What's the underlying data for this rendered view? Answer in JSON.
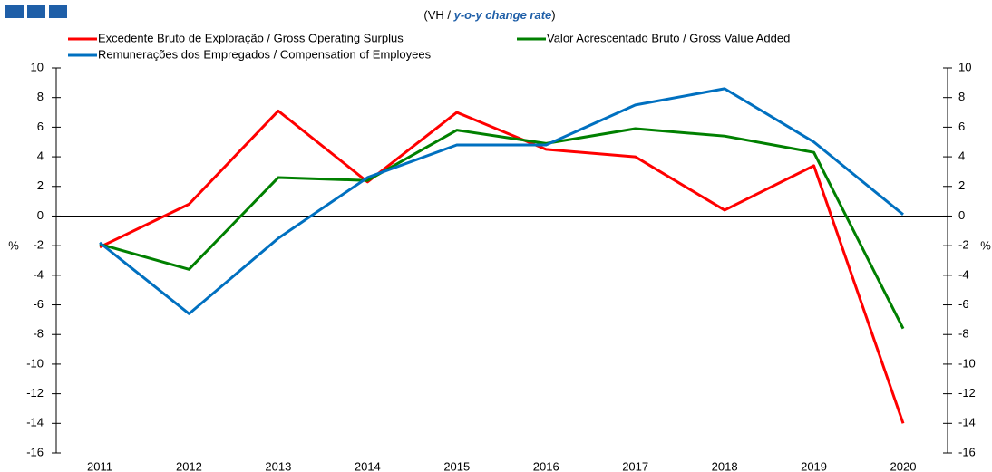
{
  "chart_data": {
    "type": "line",
    "subtitle": [
      "(VH / ",
      "y-o-y change rate",
      ")"
    ],
    "categories": [
      "2011",
      "2012",
      "2013",
      "2014",
      "2015",
      "2016",
      "2017",
      "2018",
      "2019",
      "2020"
    ],
    "series": [
      {
        "name": "Excedente Bruto de Exploração / Gross Operating Surplus",
        "color": "#ff0000",
        "values": [
          -2.1,
          0.8,
          7.1,
          2.3,
          7.0,
          4.5,
          4.0,
          0.4,
          3.4,
          -14.0
        ]
      },
      {
        "name": "Valor Acrescentado Bruto / Gross Value Added",
        "color": "#008000",
        "values": [
          -1.9,
          -3.6,
          2.6,
          2.4,
          5.8,
          4.9,
          5.9,
          5.4,
          4.3,
          -7.6
        ]
      },
      {
        "name": "Remunerações dos Empregados / Compensation of Employees",
        "color": "#0070c0",
        "values": [
          -1.8,
          -6.6,
          -1.5,
          2.6,
          4.8,
          4.8,
          7.5,
          8.6,
          5.0,
          0.1
        ]
      }
    ],
    "ylabel": "%",
    "y2label": "%",
    "ylim": [
      -16,
      10
    ],
    "yticks": [
      -16,
      -14,
      -12,
      -10,
      -8,
      -6,
      -4,
      -2,
      0,
      2,
      4,
      6,
      8,
      10
    ],
    "y2lim": [
      -16,
      10
    ],
    "y2ticks": [
      -16,
      -14,
      -12,
      -10,
      -8,
      -6,
      -4,
      -2,
      0,
      2,
      4,
      6,
      8,
      10
    ],
    "grid": false
  }
}
